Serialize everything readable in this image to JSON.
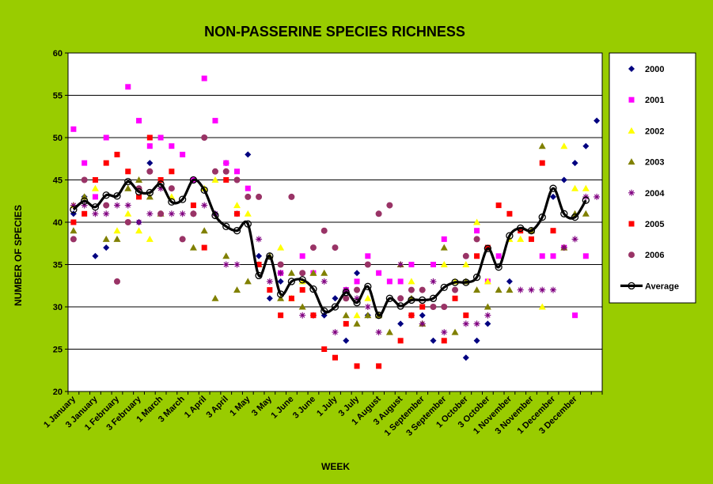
{
  "chart_data": {
    "type": "line",
    "title": "NON-PASSERINE  SPECIES RICHNESS",
    "xlabel": "WEEK",
    "ylabel": "NUMBER OF SPECIES",
    "ylim": [
      20,
      60
    ],
    "yticks": [
      20,
      25,
      30,
      35,
      40,
      45,
      50,
      55,
      60
    ],
    "grid": true,
    "legend_position": "right",
    "x_labels": [
      "1 January",
      "3 January",
      "1 February",
      "3 February",
      "1 March",
      "3 March",
      "1 April",
      "3 April",
      "1 May",
      "3 May",
      "1 June",
      "3 June",
      "1 July",
      "3 July",
      "1 August",
      "3 August",
      "1 September",
      "3 September",
      "1 October",
      "3 October",
      "1 November",
      "3 November",
      "1 December",
      "3 December"
    ],
    "week_count": 49,
    "series": [
      {
        "name": "2000",
        "marker": "diamond",
        "color": "#000080",
        "values": [
          41,
          43,
          36,
          37,
          null,
          null,
          40,
          47,
          null,
          null,
          null,
          41,
          null,
          41,
          47,
          41,
          48,
          36,
          31,
          33,
          null,
          null,
          29,
          29,
          31,
          26,
          34,
          29,
          null,
          null,
          28,
          null,
          29,
          26,
          null,
          null,
          24,
          26,
          28,
          null,
          33,
          null,
          null,
          null,
          43,
          45,
          47,
          49,
          52
        ]
      },
      {
        "name": "2001",
        "marker": "square",
        "color": "#ff00ff",
        "values": [
          51,
          47,
          43,
          50,
          null,
          56,
          52,
          49,
          50,
          49,
          48,
          45,
          57,
          52,
          47,
          46,
          44,
          null,
          null,
          34,
          null,
          36,
          34,
          null,
          null,
          32,
          33,
          36,
          34,
          33,
          33,
          35,
          null,
          35,
          38,
          null,
          null,
          39,
          33,
          36,
          null,
          null,
          null,
          36,
          36,
          37,
          29,
          36,
          null
        ]
      },
      {
        "name": "2002",
        "marker": "triangle",
        "color": "#ffff00",
        "values": [
          42,
          43,
          44,
          null,
          39,
          41,
          39,
          38,
          null,
          43,
          null,
          null,
          44,
          45,
          null,
          42,
          41,
          null,
          null,
          37,
          31,
          33,
          34,
          null,
          null,
          null,
          29,
          31,
          29,
          null,
          null,
          33,
          null,
          null,
          35,
          33,
          35,
          40,
          33,
          null,
          38,
          38,
          null,
          30,
          null,
          49,
          44,
          44,
          null
        ]
      },
      {
        "name": "2003",
        "marker": "triangle",
        "color": "#808000",
        "values": [
          39,
          43,
          null,
          38,
          38,
          44,
          45,
          43,
          41,
          null,
          null,
          37,
          39,
          31,
          36,
          32,
          33,
          35,
          36,
          31,
          34,
          30,
          34,
          34,
          null,
          29,
          28,
          29,
          29,
          27,
          35,
          31,
          28,
          null,
          37,
          27,
          33,
          32,
          30,
          32,
          32,
          null,
          39,
          49,
          null,
          37,
          41,
          41,
          null
        ]
      },
      {
        "name": "2004",
        "marker": "star",
        "color": "#800080",
        "values": [
          42,
          42,
          41,
          41,
          42,
          42,
          40,
          41,
          44,
          41,
          41,
          41,
          42,
          41,
          35,
          35,
          null,
          38,
          33,
          34,
          null,
          29,
          29,
          33,
          27,
          32,
          31,
          30,
          27,
          null,
          35,
          29,
          28,
          33,
          27,
          null,
          28,
          28,
          29,
          null,
          null,
          32,
          32,
          32,
          32,
          37,
          38,
          43,
          43
        ]
      },
      {
        "name": "2005",
        "marker": "square",
        "color": "#ff0000",
        "values": [
          40,
          41,
          45,
          47,
          48,
          46,
          43,
          50,
          45,
          46,
          null,
          42,
          37,
          null,
          45,
          41,
          null,
          35,
          32,
          29,
          31,
          32,
          29,
          25,
          24,
          28,
          23,
          null,
          23,
          null,
          26,
          29,
          30,
          null,
          26,
          31,
          29,
          36,
          37,
          42,
          41,
          39,
          38,
          47,
          39,
          null,
          null,
          null,
          null
        ]
      },
      {
        "name": "2006",
        "marker": "circle",
        "color": "#993366",
        "values": [
          38,
          45,
          null,
          42,
          33,
          40,
          44,
          46,
          41,
          44,
          38,
          41,
          50,
          46,
          46,
          45,
          43,
          43,
          null,
          35,
          43,
          34,
          37,
          39,
          37,
          31,
          32,
          35,
          41,
          42,
          31,
          32,
          32,
          30,
          30,
          32,
          36,
          38,
          null,
          null,
          null,
          null,
          null,
          null,
          null,
          null,
          null,
          null,
          null
        ]
      },
      {
        "name": "Average",
        "marker": "open-circle",
        "color": "#000000",
        "values": [
          41.5,
          42.5,
          41.8,
          43.2,
          43.1,
          44.8,
          43.6,
          43.5,
          44.5,
          42.4,
          42.7,
          45,
          43.8,
          40.8,
          39.5,
          39,
          39.8,
          33.7,
          36,
          31.5,
          33,
          33.2,
          32.1,
          29.5,
          30,
          31.7,
          30.5,
          32.4,
          29,
          31,
          30.1,
          30.8,
          30.8,
          31,
          32.3,
          32.9,
          32.9,
          33.5,
          36.9,
          34.7,
          38.4,
          39.3,
          39,
          40.6,
          44,
          41,
          40.6,
          42.6,
          null
        ]
      }
    ]
  }
}
